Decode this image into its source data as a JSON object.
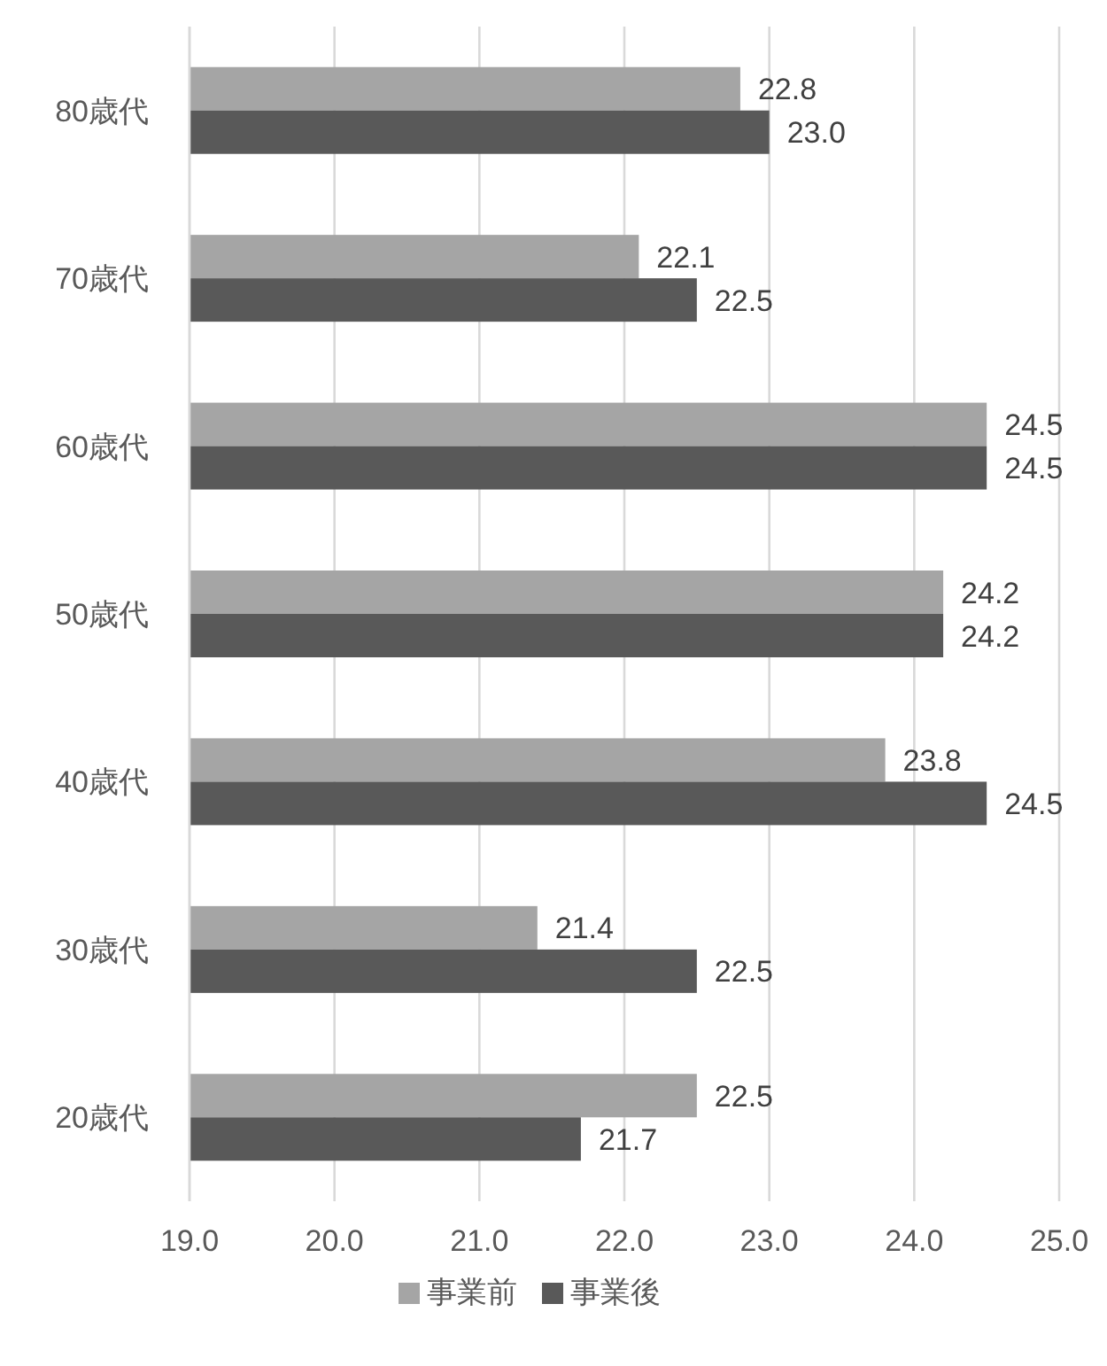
{
  "chart_data": {
    "type": "bar",
    "orientation": "horizontal",
    "categories": [
      "80歳代",
      "70歳代",
      "60歳代",
      "50歳代",
      "40歳代",
      "30歳代",
      "20歳代"
    ],
    "series": [
      {
        "name": "事業前",
        "color": "#a5a5a5",
        "values": [
          22.8,
          22.1,
          24.5,
          24.2,
          23.8,
          21.4,
          22.5
        ],
        "value_labels": [
          "22.8",
          "22.1",
          "24.5",
          "24.2",
          "23.8",
          "21.4",
          "22.5"
        ]
      },
      {
        "name": "事業後",
        "color": "#595959",
        "values": [
          23.0,
          22.5,
          24.5,
          24.2,
          24.5,
          22.5,
          21.7
        ],
        "value_labels": [
          "23.0",
          "22.5",
          "24.5",
          "24.2",
          "24.5",
          "22.5",
          "21.7"
        ]
      }
    ],
    "xlim": [
      19,
      25
    ],
    "xticks": [
      {
        "value": 19,
        "label": "19.0"
      },
      {
        "value": 20,
        "label": "20.0"
      },
      {
        "value": 21,
        "label": "21.0"
      },
      {
        "value": 22,
        "label": "22.0"
      },
      {
        "value": 23,
        "label": "23.0"
      },
      {
        "value": 24,
        "label": "24.0"
      },
      {
        "value": 25,
        "label": "25.0"
      }
    ],
    "grid": "x",
    "legend": "bottom"
  }
}
